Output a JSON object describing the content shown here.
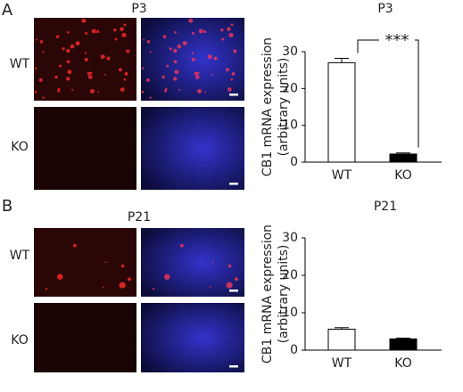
{
  "panels": [
    {
      "label": "A",
      "title": "P3",
      "rows": [
        "WT",
        "KO"
      ]
    },
    {
      "label": "B",
      "title": "P21",
      "rows": [
        "WT",
        "KO"
      ]
    }
  ],
  "chart_data": [
    {
      "type": "bar",
      "title": "P3",
      "ylabel": [
        "CB1 mRNA expression",
        "(arbitrary units)"
      ],
      "categories": [
        "WT",
        "KO"
      ],
      "values": [
        27,
        2.2
      ],
      "errors": [
        1.2,
        0.3
      ],
      "colors": [
        "#ffffff",
        "#000000"
      ],
      "ylim": [
        0,
        30
      ],
      "yticks": [
        0,
        10,
        20,
        30
      ],
      "annotation": "***"
    },
    {
      "type": "bar",
      "title": "P21",
      "ylabel": [
        "CB1 mRNA expression",
        "(arbitrary units)"
      ],
      "categories": [
        "WT",
        "KO"
      ],
      "values": [
        5.6,
        3.0
      ],
      "errors": [
        0.4,
        0.2
      ],
      "colors": [
        "#ffffff",
        "#000000"
      ],
      "ylim": [
        0,
        30
      ],
      "yticks": [
        0,
        10,
        20,
        30
      ]
    }
  ]
}
